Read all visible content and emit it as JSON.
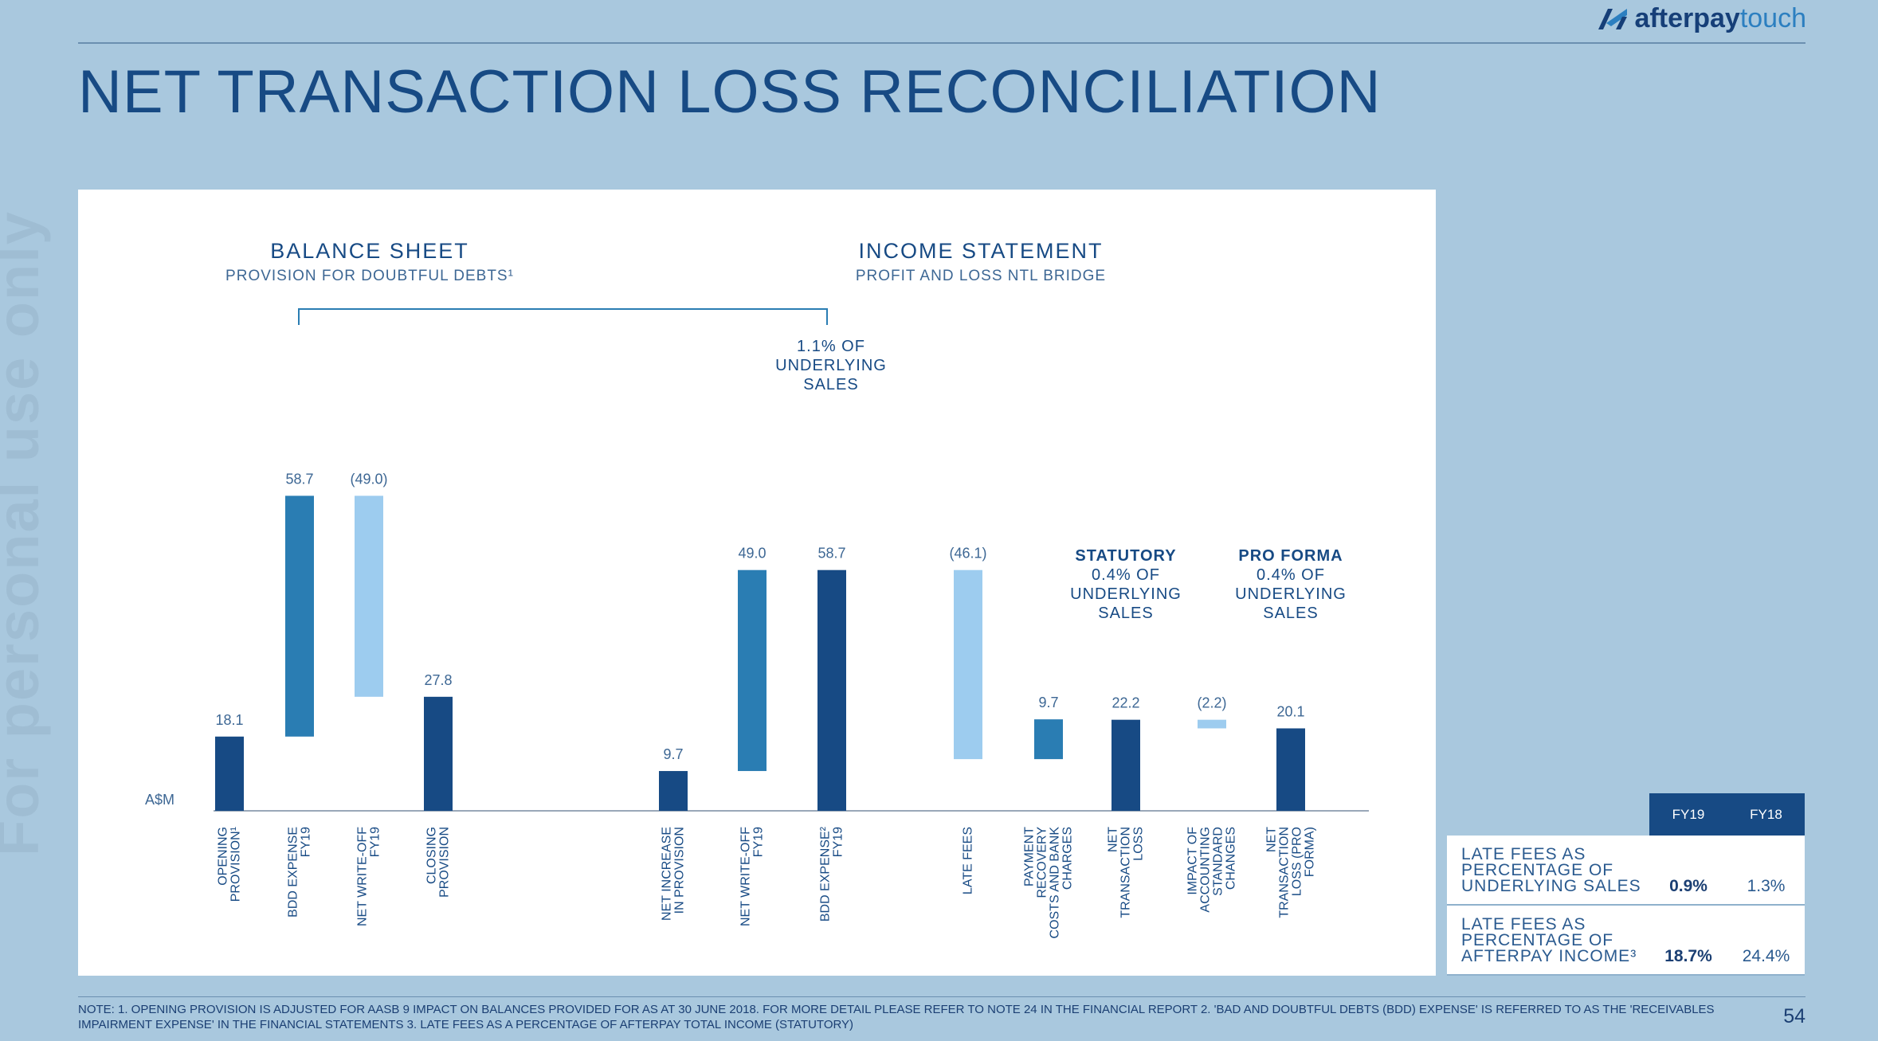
{
  "watermark": "For personal use only",
  "logo": {
    "brand": "afterpay",
    "suffix": "touch"
  },
  "title": "NET TRANSACTION LOSS RECONCILIATION",
  "colors": {
    "background": "#a9c8de",
    "dark_blue": "#174a84",
    "mid_blue": "#2a7db3",
    "light_blue": "#9dccef",
    "title_blue": "#174a84"
  },
  "chart_data": {
    "type": "bar",
    "subtype": "waterfall",
    "unit_label": "A$M",
    "sections": [
      {
        "heading": "BALANCE SHEET",
        "subheading": "PROVISION FOR DOUBTFUL DEBTS¹"
      },
      {
        "heading": "INCOME STATEMENT",
        "subheading": "PROFIT AND LOSS NTL BRIDGE"
      }
    ],
    "bracket_note": [
      "1.1% OF",
      "UNDERLYING",
      "SALES"
    ],
    "bars": [
      {
        "label": [
          "OPENING",
          "PROVISION¹"
        ],
        "value_label": "18.1",
        "start": 0,
        "end": 18.1,
        "color": "dark"
      },
      {
        "label": [
          "BDD EXPENSE",
          "FY19"
        ],
        "value_label": "58.7",
        "start": 18.1,
        "end": 76.8,
        "color": "mid"
      },
      {
        "label": [
          "NET WRITE-OFF",
          "FY19"
        ],
        "value_label": "(49.0)",
        "start": 27.8,
        "end": 76.8,
        "color": "light"
      },
      {
        "label": [
          "CLOSING",
          "PROVISION"
        ],
        "value_label": "27.8",
        "start": 0,
        "end": 27.8,
        "color": "dark"
      },
      {
        "label": [
          "NET INCREASE",
          "IN PROVISION"
        ],
        "value_label": "9.7",
        "start": 0,
        "end": 9.7,
        "color": "dark"
      },
      {
        "label": [
          "NET WRITE-OFF",
          "FY19"
        ],
        "value_label": "49.0",
        "start": 9.7,
        "end": 58.7,
        "color": "mid"
      },
      {
        "label": [
          "BDD EXPENSE²",
          "FY19"
        ],
        "value_label": "58.7",
        "start": 0,
        "end": 58.7,
        "color": "dark"
      },
      {
        "label": [
          "LATE FEES"
        ],
        "value_label": "(46.1)",
        "start": 12.6,
        "end": 58.7,
        "color": "light"
      },
      {
        "label": [
          "PAYMENT",
          "RECOVERY",
          "COSTS AND BANK",
          "CHARGES"
        ],
        "value_label": "9.7",
        "start": 12.6,
        "end": 22.3,
        "color": "mid"
      },
      {
        "label": [
          "NET",
          "TRANSACTION",
          "LOSS"
        ],
        "value_label": "22.2",
        "start": 0,
        "end": 22.2,
        "color": "dark"
      },
      {
        "label": [
          "IMPACT OF",
          "ACCOUNTING",
          "STANDARD",
          "CHANGES"
        ],
        "value_label": "(2.2)",
        "start": 20.1,
        "end": 22.2,
        "color": "light"
      },
      {
        "label": [
          "NET",
          "TRANSACTION",
          "LOSS (PRO",
          "FORMA)"
        ],
        "value_label": "20.1",
        "start": 0,
        "end": 20.1,
        "color": "dark"
      }
    ],
    "annotations": [
      {
        "title": "STATUTORY",
        "lines": [
          "0.4% OF",
          "UNDERLYING",
          "SALES"
        ]
      },
      {
        "title": "PRO FORMA",
        "lines": [
          "0.4% OF",
          "UNDERLYING",
          "SALES"
        ]
      }
    ]
  },
  "table": {
    "headers": [
      "FY19",
      "FY18"
    ],
    "rows": [
      {
        "label": "LATE FEES AS PERCENTAGE OF UNDERLYING SALES",
        "fy19": "0.9%",
        "fy18": "1.3%"
      },
      {
        "label": "LATE FEES AS PERCENTAGE OF AFTERPAY INCOME³",
        "fy19": "18.7%",
        "fy18": "24.4%"
      }
    ]
  },
  "footnote": "NOTE: 1. OPENING PROVISION IS ADJUSTED FOR AASB 9 IMPACT ON BALANCES PROVIDED FOR AS AT 30 JUNE 2018. FOR MORE DETAIL PLEASE REFER TO NOTE 24 IN THE FINANCIAL REPORT 2. 'BAD AND DOUBTFUL DEBTS (BDD) EXPENSE' IS REFERRED TO AS THE 'RECEIVABLES IMPAIRMENT EXPENSE' IN THE FINANCIAL STATEMENTS 3. LATE FEES AS A PERCENTAGE OF AFTERPAY TOTAL INCOME (STATUTORY)",
  "page_number": "54"
}
